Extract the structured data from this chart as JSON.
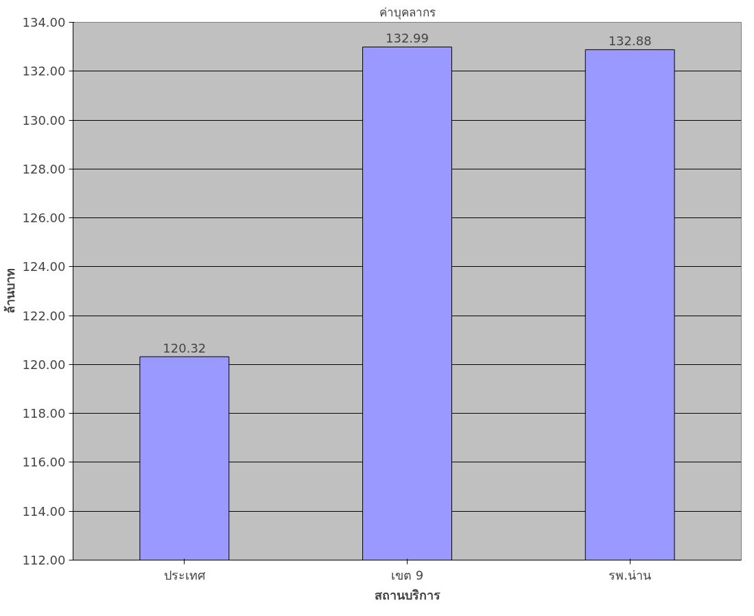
{
  "chart_data": {
    "type": "bar",
    "title": "ค่าบุคลากร",
    "xlabel": "สถานบริการ",
    "ylabel": "ล้านบาท",
    "categories": [
      "ประเทศ",
      "เขต 9",
      "รพ.น่าน"
    ],
    "values": [
      120.32,
      132.99,
      132.88
    ],
    "color": "#9999ff",
    "ylim": [
      112,
      134
    ],
    "yticks": [
      {
        "value": 112,
        "label": "112.00"
      },
      {
        "value": 114,
        "label": "114.00"
      },
      {
        "value": 116,
        "label": "116.00"
      },
      {
        "value": 118,
        "label": "118.00"
      },
      {
        "value": 120,
        "label": "120.00"
      },
      {
        "value": 122,
        "label": "122.00"
      },
      {
        "value": 124,
        "label": "124.00"
      },
      {
        "value": 126,
        "label": "126.00"
      },
      {
        "value": 128,
        "label": "128.00"
      },
      {
        "value": 130,
        "label": "130.00"
      },
      {
        "value": 132,
        "label": "132.00"
      },
      {
        "value": 134,
        "label": "134.00"
      }
    ],
    "grid": "y",
    "data_labels": true
  }
}
